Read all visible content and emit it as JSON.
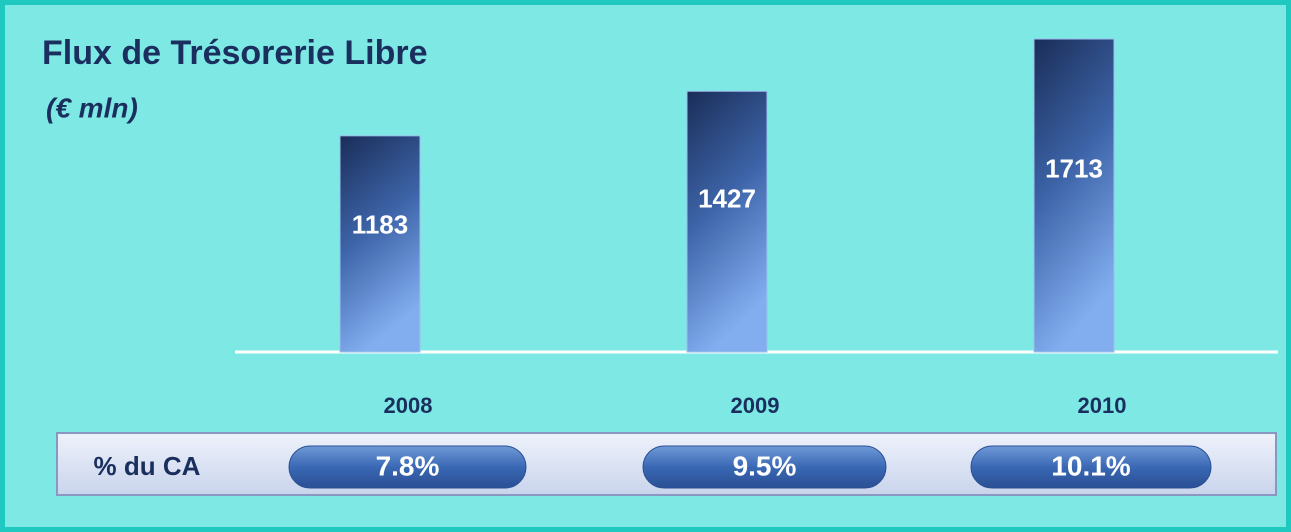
{
  "chart_data": {
    "type": "bar",
    "title": "Flux de Trésorerie Libre",
    "subtitle": "(€ mln)",
    "categories": [
      "2008",
      "2009",
      "2010"
    ],
    "values": [
      1183,
      1427,
      1713
    ],
    "color": "#2a4a86"
  },
  "sales_share": {
    "label": "% du CA",
    "values": [
      "7.8%",
      "9.5%",
      "10.1%"
    ]
  }
}
